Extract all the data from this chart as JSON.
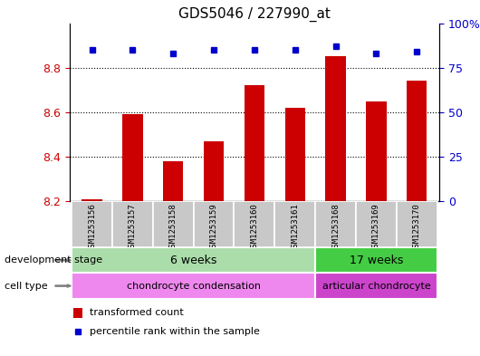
{
  "title": "GDS5046 / 227990_at",
  "samples": [
    "GSM1253156",
    "GSM1253157",
    "GSM1253158",
    "GSM1253159",
    "GSM1253160",
    "GSM1253161",
    "GSM1253168",
    "GSM1253169",
    "GSM1253170"
  ],
  "transformed_counts": [
    8.21,
    8.59,
    8.38,
    8.47,
    8.72,
    8.62,
    8.85,
    8.65,
    8.74
  ],
  "percentile_ranks": [
    85,
    85,
    83,
    85,
    85,
    85,
    87,
    83,
    84
  ],
  "ylim_left": [
    8.2,
    9.0
  ],
  "ylim_right": [
    0,
    100
  ],
  "yticks_left": [
    8.2,
    8.4,
    8.6,
    8.8
  ],
  "yticks_right": [
    0,
    25,
    50,
    75,
    100
  ],
  "yticklabels_right": [
    "0",
    "25",
    "50",
    "75",
    "100%"
  ],
  "bar_color": "#cc0000",
  "dot_color": "#0000cc",
  "groups": [
    {
      "label": "6 weeks",
      "start": 0,
      "end": 6,
      "color": "#aaddaa"
    },
    {
      "label": "17 weeks",
      "start": 6,
      "end": 9,
      "color": "#44cc44"
    }
  ],
  "cell_types": [
    {
      "label": "chondrocyte condensation",
      "start": 0,
      "end": 6,
      "color": "#ee88ee"
    },
    {
      "label": "articular chondrocyte",
      "start": 6,
      "end": 9,
      "color": "#cc44cc"
    }
  ],
  "dev_stage_label": "development stage",
  "cell_type_label": "cell type",
  "legend_bar_label": "transformed count",
  "legend_dot_label": "percentile rank within the sample",
  "tick_bg_color": "#c8c8c8",
  "title_fontsize": 11,
  "axis_fontsize": 9,
  "label_fontsize": 8,
  "bar_width": 0.5,
  "xlim": [
    -0.55,
    8.55
  ]
}
